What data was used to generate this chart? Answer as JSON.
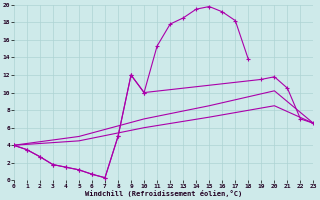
{
  "background_color": "#ceeaea",
  "grid_color": "#add4d4",
  "line_color": "#aa00aa",
  "xlim": [
    0,
    23
  ],
  "ylim": [
    0,
    20
  ],
  "xticks": [
    0,
    1,
    2,
    3,
    4,
    5,
    6,
    7,
    8,
    9,
    10,
    11,
    12,
    13,
    14,
    15,
    16,
    17,
    18,
    19,
    20,
    21,
    22,
    23
  ],
  "yticks": [
    0,
    2,
    4,
    6,
    8,
    10,
    12,
    14,
    16,
    18,
    20
  ],
  "xlabel": "Windchill (Refroidissement éolien,°C)",
  "curve1_x": [
    0,
    1,
    2,
    3,
    4,
    5,
    6,
    7,
    8,
    9,
    10,
    11,
    12,
    13,
    14,
    15,
    16,
    17,
    18
  ],
  "curve1_y": [
    4.0,
    3.5,
    2.7,
    1.8,
    1.5,
    1.2,
    0.7,
    0.3,
    5.0,
    12.0,
    10.0,
    15.3,
    17.8,
    18.5,
    19.5,
    19.8,
    19.2,
    18.2,
    13.8
  ],
  "curve2_x": [
    0,
    1,
    2,
    3,
    4,
    5,
    6,
    7,
    8,
    9,
    10,
    19,
    20,
    21,
    22,
    23
  ],
  "curve2_y": [
    4.0,
    3.5,
    2.7,
    1.8,
    1.5,
    1.2,
    0.7,
    0.3,
    5.0,
    12.0,
    10.0,
    11.5,
    11.8,
    10.5,
    7.0,
    6.5
  ],
  "curve3_x": [
    0,
    5,
    10,
    15,
    20,
    23
  ],
  "curve3_y": [
    4.0,
    5.0,
    7.0,
    8.5,
    10.2,
    6.5
  ],
  "curve4_x": [
    0,
    5,
    10,
    15,
    20,
    23
  ],
  "curve4_y": [
    4.0,
    4.5,
    6.0,
    7.2,
    8.5,
    6.5
  ]
}
